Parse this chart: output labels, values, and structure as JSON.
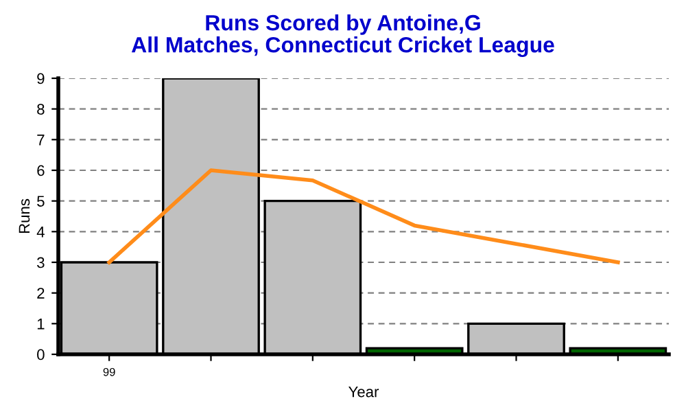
{
  "chart_data": {
    "type": "bar",
    "title": "Runs Scored by Antoine,G\nAll Matches, Connecticut Cricket League",
    "xlabel": "Year",
    "ylabel": "Runs",
    "categories": [
      "99",
      null,
      null,
      null,
      null,
      null
    ],
    "series": [
      {
        "values": [
          3,
          9,
          5,
          0.2,
          1,
          0.2
        ],
        "colors": [
          "#c0c0c0",
          "#c0c0c0",
          "#c0c0c0",
          "#006400",
          "#c0c0c0",
          "#006400"
        ]
      },
      {
        "type": "line",
        "color": "#ff8c1a",
        "values": [
          3,
          6,
          5.67,
          4.2,
          3.6,
          3.0
        ]
      }
    ],
    "ylim": [
      0,
      9
    ],
    "yticks": [
      0,
      1,
      2,
      3,
      4,
      5,
      6,
      7,
      8,
      9
    ],
    "grid": "y",
    "line_style": "solid",
    "marker": "none"
  }
}
